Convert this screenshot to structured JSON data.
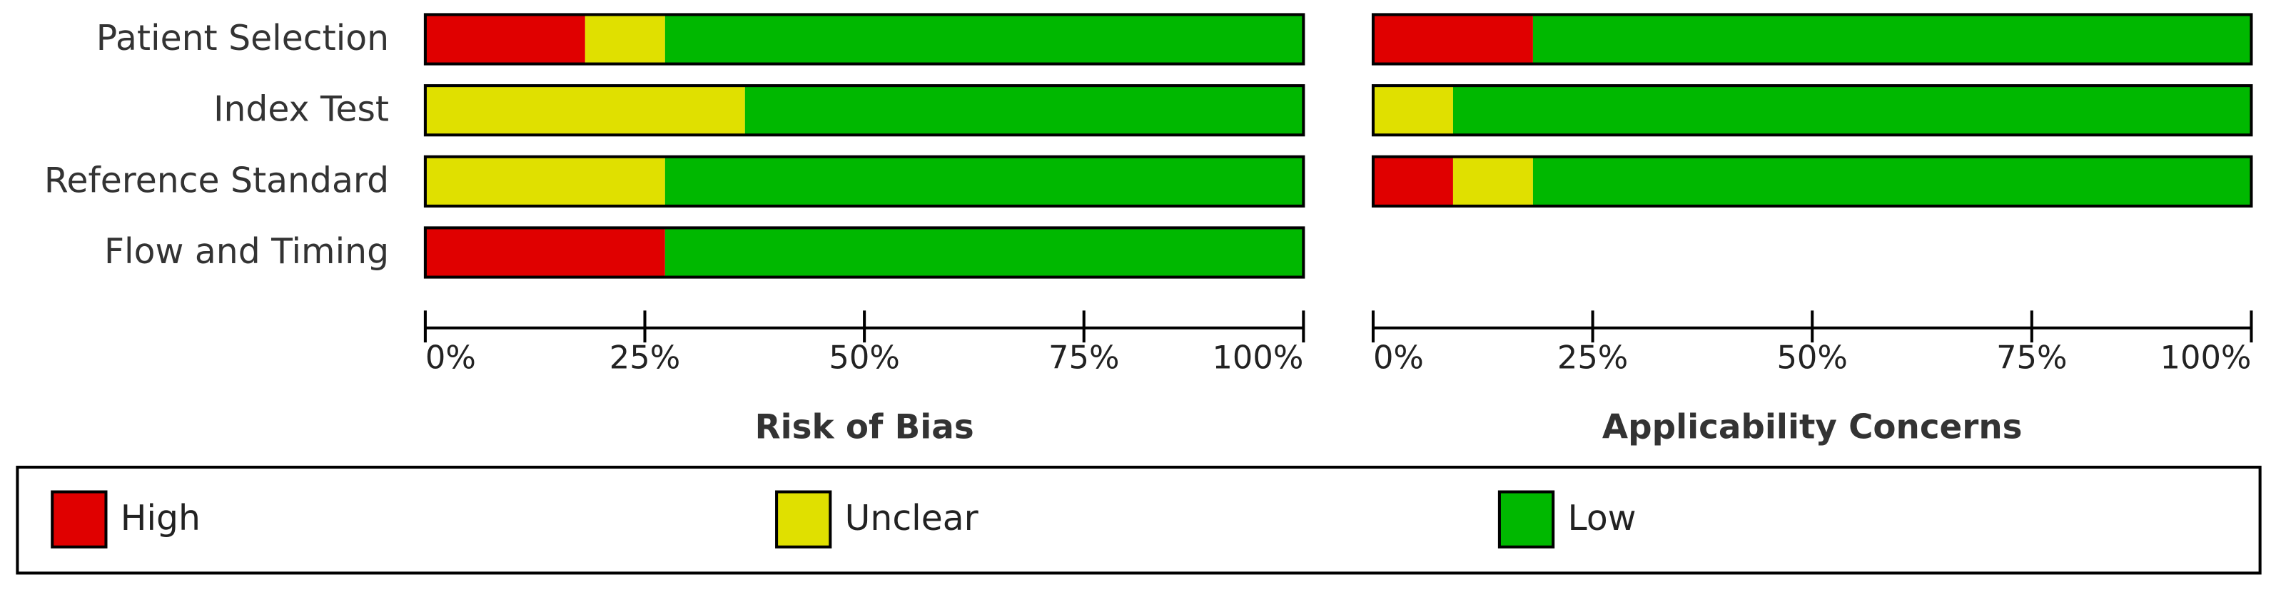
{
  "chart_data": [
    {
      "type": "bar",
      "orientation": "horizontal",
      "stacked": true,
      "x_label": "Risk of Bias",
      "categories": [
        "Patient Selection",
        "Index Test",
        "Reference Standard",
        "Flow and Timing"
      ],
      "series": [
        {
          "name": "High",
          "color": "#e00000",
          "values": [
            18.2,
            0,
            0,
            27.3
          ]
        },
        {
          "name": "Unclear",
          "color": "#e0e000",
          "values": [
            9.1,
            36.4,
            27.3,
            0
          ]
        },
        {
          "name": "Low",
          "color": "#00b800",
          "values": [
            72.7,
            63.6,
            72.7,
            72.7
          ]
        }
      ],
      "xlim": [
        0,
        100
      ],
      "xticks": [
        {
          "value": 0,
          "label": "0%"
        },
        {
          "value": 25,
          "label": "25%"
        },
        {
          "value": 50,
          "label": "50%"
        },
        {
          "value": 75,
          "label": "75%"
        },
        {
          "value": 100,
          "label": "100%"
        }
      ]
    },
    {
      "type": "bar",
      "orientation": "horizontal",
      "stacked": true,
      "x_label": "Applicability Concerns",
      "series": [
        {
          "name": "High",
          "color": "#e00000",
          "values": [
            18.2,
            0,
            9.1,
            null
          ]
        },
        {
          "name": "Unclear",
          "color": "#e0e000",
          "values": [
            0,
            9.1,
            9.1,
            null
          ]
        },
        {
          "name": "Low",
          "color": "#00b800",
          "values": [
            81.8,
            90.9,
            81.8,
            null
          ]
        }
      ],
      "xlim": [
        0,
        100
      ],
      "xticks": [
        {
          "value": 0,
          "label": "0%"
        },
        {
          "value": 25,
          "label": "25%"
        },
        {
          "value": 50,
          "label": "50%"
        },
        {
          "value": 75,
          "label": "75%"
        },
        {
          "value": 100,
          "label": "100%"
        }
      ]
    }
  ]
}
